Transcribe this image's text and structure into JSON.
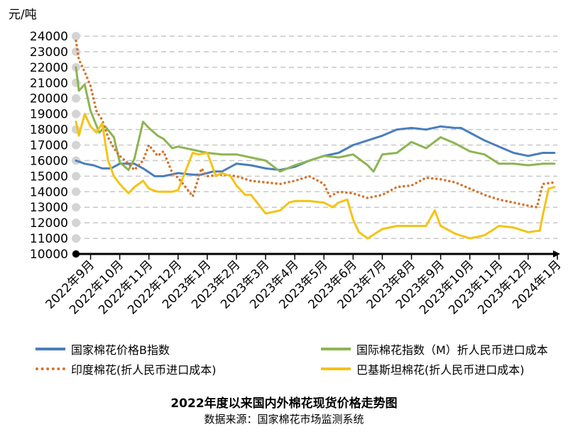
{
  "chart_data": {
    "type": "line",
    "title": "2022年度以来国内外棉花现货价格走势图",
    "subtitle": "数据来源：国家棉花市场监测系统",
    "ylabel": "元/吨",
    "xlabel": "",
    "ylim": [
      10000,
      24000
    ],
    "yticks": [
      10000,
      11000,
      12000,
      13000,
      14000,
      15000,
      16000,
      17000,
      18000,
      19000,
      20000,
      21000,
      22000,
      23000,
      24000
    ],
    "categories": [
      "2022年9月",
      "2022年10月",
      "2022年11月",
      "2022年12月",
      "2023年1月",
      "2023年2月",
      "2023年3月",
      "2023年4月",
      "2023年5月",
      "2023年6月",
      "2023年7月",
      "2023年8月",
      "2023年9月",
      "2023年10月",
      "2023年11月",
      "2023年12月",
      "2024年1月"
    ],
    "grid": true,
    "legend_position": "bottom",
    "series": [
      {
        "name": "国家棉花价格B指数",
        "color": "#4a7ebb",
        "style": "solid",
        "x": [
          0,
          0.3,
          0.6,
          0.9,
          1.2,
          1.5,
          2.0,
          2.3,
          2.7,
          3.0,
          3.5,
          4.0,
          4.3,
          4.7,
          5.0,
          5.5,
          6.0,
          6.5,
          7.0,
          7.5,
          8.0,
          8.5,
          9.0,
          9.5,
          10.0,
          10.5,
          11.0,
          11.5,
          12.0,
          12.5,
          13.0,
          13.2,
          13.5,
          14.0,
          14.5,
          15.0,
          15.5,
          16.0,
          16.4
        ],
        "y": [
          16000,
          15800,
          15700,
          15500,
          15500,
          15800,
          15800,
          15500,
          15000,
          15000,
          15200,
          15100,
          15100,
          15300,
          15300,
          15800,
          15700,
          15500,
          15400,
          15600,
          16000,
          16300,
          16500,
          17000,
          17300,
          17600,
          18000,
          18100,
          18000,
          18200,
          18100,
          18100,
          17800,
          17300,
          16900,
          16500,
          16300,
          16500,
          16500
        ]
      },
      {
        "name": "国际棉花指数（M）折人民币进口成本",
        "color": "#8cb551",
        "style": "solid",
        "x": [
          0,
          0.1,
          0.3,
          0.5,
          0.8,
          1.0,
          1.3,
          1.5,
          1.8,
          2.0,
          2.3,
          2.5,
          2.8,
          3.0,
          3.3,
          3.5,
          4.0,
          4.5,
          5.0,
          5.5,
          6.0,
          6.5,
          7.0,
          7.5,
          8.0,
          8.5,
          9.0,
          9.5,
          10.0,
          10.2,
          10.5,
          11.0,
          11.5,
          12.0,
          12.5,
          13.0,
          13.5,
          14.0,
          14.5,
          15.0,
          15.5,
          16.0,
          16.4
        ],
        "y": [
          22000,
          20500,
          20900,
          19200,
          17800,
          18200,
          17500,
          15900,
          15400,
          16100,
          18500,
          18100,
          17600,
          17400,
          16800,
          16900,
          16700,
          16500,
          16400,
          16400,
          16200,
          16000,
          15300,
          15700,
          16000,
          16300,
          16200,
          16400,
          15700,
          15300,
          16400,
          16500,
          17200,
          16800,
          17500,
          17100,
          16600,
          16400,
          15800,
          15800,
          15700,
          15800,
          15800
        ]
      },
      {
        "name": "印度棉花(折人民币进口成本)",
        "color": "#d4732c",
        "style": "dotted",
        "x": [
          0,
          0.1,
          0.3,
          0.5,
          0.7,
          0.9,
          1.1,
          1.3,
          1.5,
          1.8,
          2.0,
          2.3,
          2.5,
          2.8,
          3.0,
          3.3,
          3.5,
          3.8,
          4.0,
          4.3,
          4.5,
          5.0,
          5.5,
          6.0,
          6.5,
          7.0,
          7.5,
          8.0,
          8.5,
          8.7,
          9.0,
          9.5,
          10.0,
          10.5,
          11.0,
          11.5,
          12.0,
          12.5,
          13.0,
          13.5,
          14.0,
          14.5,
          15.0,
          15.5,
          15.8,
          16.0,
          16.4
        ],
        "y": [
          23700,
          22500,
          21700,
          20800,
          19200,
          18600,
          17500,
          16800,
          16300,
          15800,
          15400,
          16000,
          17000,
          16300,
          16600,
          15200,
          14900,
          14200,
          13700,
          15500,
          15000,
          15100,
          15000,
          14700,
          14600,
          14500,
          14700,
          15000,
          14500,
          13700,
          14000,
          13900,
          13600,
          13800,
          14300,
          14400,
          14900,
          14800,
          14600,
          14200,
          13800,
          13500,
          13300,
          13100,
          13000,
          14500,
          14600
        ]
      },
      {
        "name": "巴基斯坦棉花(折人民币进口成本)",
        "color": "#f5c314",
        "style": "solid",
        "x": [
          0,
          0.1,
          0.3,
          0.5,
          0.7,
          0.9,
          1.1,
          1.3,
          1.5,
          1.8,
          2.0,
          2.3,
          2.5,
          2.8,
          3.0,
          3.3,
          3.5,
          4.0,
          4.2,
          4.5,
          4.8,
          5.0,
          5.3,
          5.5,
          5.8,
          6.0,
          6.5,
          7.0,
          7.3,
          7.5,
          8.0,
          8.5,
          8.8,
          9.0,
          9.3,
          9.5,
          9.7,
          10.0,
          10.5,
          11.0,
          11.5,
          12.0,
          12.3,
          12.5,
          13.0,
          13.5,
          14.0,
          14.5,
          15.0,
          15.5,
          15.9,
          16.0,
          16.2,
          16.4
        ],
        "y": [
          18500,
          17600,
          19000,
          18200,
          17800,
          18400,
          16000,
          15000,
          14500,
          13900,
          14300,
          14700,
          14200,
          14000,
          14000,
          14000,
          14100,
          16500,
          16400,
          16500,
          15000,
          15200,
          15000,
          14400,
          13800,
          13800,
          12600,
          12800,
          13300,
          13400,
          13400,
          13300,
          13000,
          13300,
          13500,
          12200,
          11400,
          11000,
          11600,
          11800,
          11800,
          11800,
          12800,
          11800,
          11300,
          11000,
          11200,
          11800,
          11700,
          11400,
          11500,
          12500,
          14200,
          14300
        ]
      }
    ]
  }
}
